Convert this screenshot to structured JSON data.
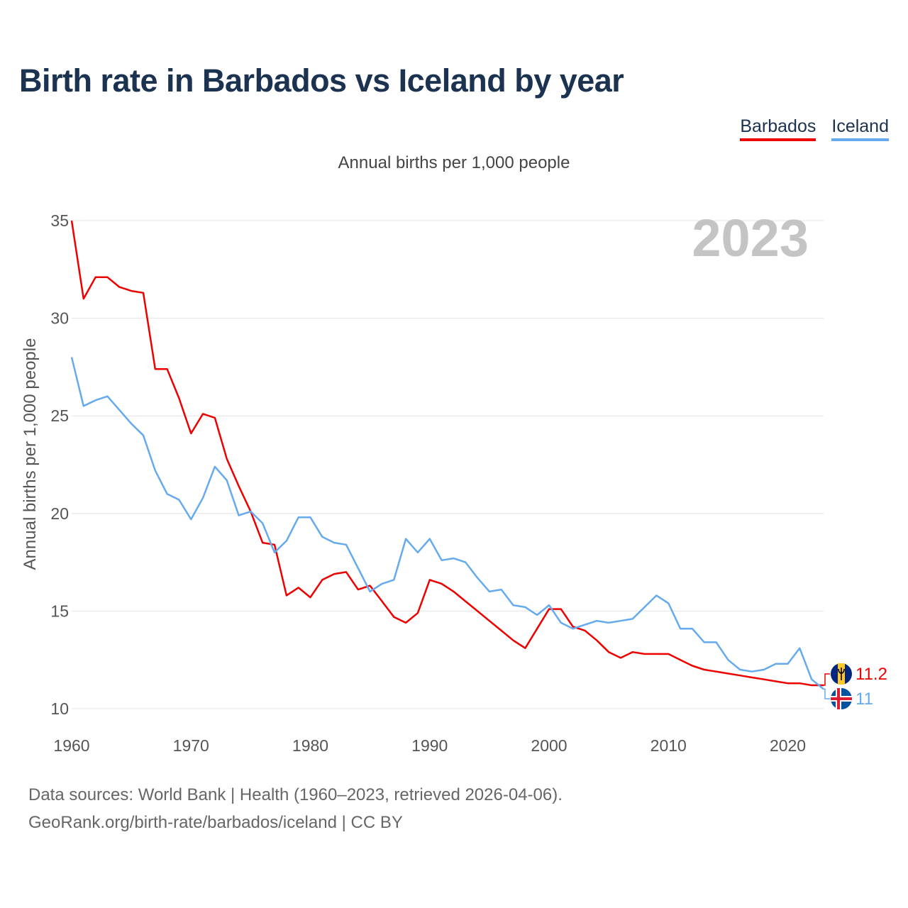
{
  "title": "Birth rate in Barbados vs Iceland by year",
  "subtitle": "Annual births per 1,000 people",
  "legend": [
    {
      "label": "Barbados",
      "color": "#ee0000"
    },
    {
      "label": "Iceland",
      "color": "#66aaee"
    }
  ],
  "footer": {
    "line1": "Data sources: World Bank | Health (1960–2023, retrieved 2026-04-06).",
    "line2": "GeoRank.org/birth-rate/barbados/iceland | CC BY"
  },
  "chart_data": {
    "type": "line",
    "title": "Birth rate in Barbados vs Iceland by year",
    "subtitle": "Annual births per 1,000 people",
    "xlabel": "",
    "ylabel": "Annual births per 1,000 people",
    "year_label": "2023",
    "xlim": [
      1960,
      2023
    ],
    "ylim": [
      10,
      35
    ],
    "x_ticks": [
      1960,
      1970,
      1980,
      1990,
      2000,
      2010,
      2020
    ],
    "y_ticks": [
      10,
      15,
      20,
      25,
      30,
      35
    ],
    "grid": true,
    "legend_position": "top-right",
    "x": [
      1960,
      1961,
      1962,
      1963,
      1964,
      1965,
      1966,
      1967,
      1968,
      1969,
      1970,
      1971,
      1972,
      1973,
      1974,
      1975,
      1976,
      1977,
      1978,
      1979,
      1980,
      1981,
      1982,
      1983,
      1984,
      1985,
      1986,
      1987,
      1988,
      1989,
      1990,
      1991,
      1992,
      1993,
      1994,
      1995,
      1996,
      1997,
      1998,
      1999,
      2000,
      2001,
      2002,
      2003,
      2004,
      2005,
      2006,
      2007,
      2008,
      2009,
      2010,
      2011,
      2012,
      2013,
      2014,
      2015,
      2016,
      2017,
      2018,
      2019,
      2020,
      2021,
      2022,
      2023
    ],
    "series": [
      {
        "name": "Barbados",
        "color": "#ee0000",
        "end_label": "11.2",
        "values": [
          35.0,
          31.0,
          32.1,
          32.1,
          31.6,
          31.4,
          31.3,
          27.4,
          27.4,
          25.9,
          24.1,
          25.1,
          24.9,
          22.8,
          21.4,
          20.1,
          18.5,
          18.4,
          15.8,
          16.2,
          15.7,
          16.6,
          16.9,
          17.0,
          16.1,
          16.3,
          15.5,
          14.7,
          14.4,
          14.9,
          16.6,
          16.4,
          16.0,
          15.5,
          15.0,
          14.5,
          14.0,
          13.5,
          13.1,
          14.1,
          15.1,
          15.1,
          14.2,
          14.0,
          13.5,
          12.9,
          12.6,
          12.9,
          12.8,
          12.8,
          12.8,
          12.5,
          12.2,
          12.0,
          11.9,
          11.8,
          11.7,
          11.6,
          11.5,
          11.4,
          11.3,
          11.3,
          11.2,
          11.2
        ]
      },
      {
        "name": "Iceland",
        "color": "#66aaee",
        "end_label": "11",
        "values": [
          28.0,
          25.5,
          25.8,
          26.0,
          25.3,
          24.6,
          24.0,
          22.2,
          21.0,
          20.7,
          19.7,
          20.8,
          22.4,
          21.7,
          19.9,
          20.1,
          19.5,
          18.0,
          18.6,
          19.8,
          19.8,
          18.8,
          18.5,
          18.4,
          17.2,
          16.0,
          16.4,
          16.6,
          18.7,
          18.0,
          18.7,
          17.6,
          17.7,
          17.5,
          16.7,
          16.0,
          16.1,
          15.3,
          15.2,
          14.8,
          15.3,
          14.4,
          14.1,
          14.3,
          14.5,
          14.4,
          14.5,
          14.6,
          15.2,
          15.8,
          15.4,
          14.1,
          14.1,
          13.4,
          13.4,
          12.5,
          12.0,
          11.9,
          12.0,
          12.3,
          12.3,
          13.1,
          11.5,
          11.0
        ]
      }
    ]
  }
}
